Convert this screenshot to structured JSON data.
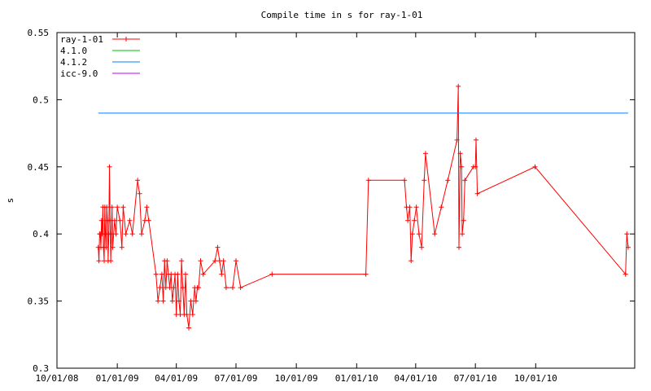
{
  "chart_data": {
    "type": "line",
    "title": "Compile time in s for ray-1-01",
    "xlabel": "",
    "ylabel": "s",
    "x_ticks": [
      "10/01/08",
      "01/01/09",
      "04/01/09",
      "07/01/09",
      "10/01/09",
      "01/01/10",
      "04/01/10",
      "07/01/10",
      "10/01/10"
    ],
    "xlim": [
      "2008-10-01",
      "2011-03-01"
    ],
    "ylim": [
      0.3,
      0.55
    ],
    "y_ticks": [
      "0.3",
      "0.35",
      "0.4",
      "0.45",
      "0.5",
      "0.55"
    ],
    "grid": false,
    "legend_position": "top-left",
    "series": [
      {
        "name": "ray-1-01",
        "color": "#ff0000",
        "marker": "plus",
        "points": [
          [
            "2008-12-03",
            0.39
          ],
          [
            "2008-12-04",
            0.38
          ],
          [
            "2008-12-05",
            0.4
          ],
          [
            "2008-12-06",
            0.4
          ],
          [
            "2008-12-07",
            0.39
          ],
          [
            "2008-12-08",
            0.41
          ],
          [
            "2008-12-09",
            0.4
          ],
          [
            "2008-12-10",
            0.42
          ],
          [
            "2008-12-11",
            0.39
          ],
          [
            "2008-12-12",
            0.38
          ],
          [
            "2008-12-13",
            0.42
          ],
          [
            "2008-12-14",
            0.4
          ],
          [
            "2008-12-15",
            0.39
          ],
          [
            "2008-12-16",
            0.42
          ],
          [
            "2008-12-17",
            0.41
          ],
          [
            "2008-12-18",
            0.38
          ],
          [
            "2008-12-19",
            0.4
          ],
          [
            "2008-12-20",
            0.45
          ],
          [
            "2008-12-21",
            0.41
          ],
          [
            "2008-12-22",
            0.38
          ],
          [
            "2008-12-23",
            0.4
          ],
          [
            "2008-12-24",
            0.42
          ],
          [
            "2008-12-25",
            0.39
          ],
          [
            "2008-12-28",
            0.41
          ],
          [
            "2008-12-30",
            0.4
          ],
          [
            "2009-01-01",
            0.42
          ],
          [
            "2009-01-05",
            0.41
          ],
          [
            "2009-01-08",
            0.39
          ],
          [
            "2009-01-10",
            0.42
          ],
          [
            "2009-01-14",
            0.4
          ],
          [
            "2009-01-20",
            0.41
          ],
          [
            "2009-01-24",
            0.4
          ],
          [
            "2009-02-01",
            0.44
          ],
          [
            "2009-02-04",
            0.43
          ],
          [
            "2009-02-07",
            0.4
          ],
          [
            "2009-02-12",
            0.41
          ],
          [
            "2009-02-15",
            0.42
          ],
          [
            "2009-02-18",
            0.41
          ],
          [
            "2009-03-01",
            0.37
          ],
          [
            "2009-03-04",
            0.35
          ],
          [
            "2009-03-07",
            0.36
          ],
          [
            "2009-03-10",
            0.37
          ],
          [
            "2009-03-12",
            0.35
          ],
          [
            "2009-03-14",
            0.38
          ],
          [
            "2009-03-16",
            0.36
          ],
          [
            "2009-03-18",
            0.38
          ],
          [
            "2009-03-20",
            0.37
          ],
          [
            "2009-03-22",
            0.36
          ],
          [
            "2009-03-24",
            0.37
          ],
          [
            "2009-03-26",
            0.35
          ],
          [
            "2009-03-28",
            0.36
          ],
          [
            "2009-03-30",
            0.37
          ],
          [
            "2009-04-01",
            0.34
          ],
          [
            "2009-04-03",
            0.37
          ],
          [
            "2009-04-05",
            0.35
          ],
          [
            "2009-04-07",
            0.34
          ],
          [
            "2009-04-09",
            0.38
          ],
          [
            "2009-04-11",
            0.36
          ],
          [
            "2009-04-13",
            0.34
          ],
          [
            "2009-04-15",
            0.37
          ],
          [
            "2009-04-17",
            0.34
          ],
          [
            "2009-04-20",
            0.33
          ],
          [
            "2009-04-23",
            0.35
          ],
          [
            "2009-04-26",
            0.34
          ],
          [
            "2009-04-29",
            0.36
          ],
          [
            "2009-05-01",
            0.35
          ],
          [
            "2009-05-03",
            0.36
          ],
          [
            "2009-05-05",
            0.36
          ],
          [
            "2009-05-08",
            0.38
          ],
          [
            "2009-05-12",
            0.37
          ],
          [
            "2009-05-30",
            0.38
          ],
          [
            "2009-06-03",
            0.39
          ],
          [
            "2009-06-06",
            0.38
          ],
          [
            "2009-06-09",
            0.37
          ],
          [
            "2009-06-12",
            0.38
          ],
          [
            "2009-06-16",
            0.36
          ],
          [
            "2009-06-26",
            0.36
          ],
          [
            "2009-07-01",
            0.38
          ],
          [
            "2009-07-08",
            0.36
          ],
          [
            "2009-08-25",
            0.37
          ],
          [
            "2010-01-15",
            0.37
          ],
          [
            "2010-01-19",
            0.44
          ],
          [
            "2010-03-15",
            0.44
          ],
          [
            "2010-03-18",
            0.42
          ],
          [
            "2010-03-20",
            0.41
          ],
          [
            "2010-03-23",
            0.42
          ],
          [
            "2010-03-25",
            0.38
          ],
          [
            "2010-03-27",
            0.4
          ],
          [
            "2010-03-30",
            0.41
          ],
          [
            "2010-04-02",
            0.42
          ],
          [
            "2010-04-06",
            0.4
          ],
          [
            "2010-04-10",
            0.39
          ],
          [
            "2010-04-14",
            0.44
          ],
          [
            "2010-04-16",
            0.46
          ],
          [
            "2010-04-30",
            0.4
          ],
          [
            "2010-05-10",
            0.42
          ],
          [
            "2010-05-20",
            0.44
          ],
          [
            "2010-06-03",
            0.47
          ],
          [
            "2010-06-05",
            0.51
          ],
          [
            "2010-06-06",
            0.39
          ],
          [
            "2010-06-08",
            0.46
          ],
          [
            "2010-06-10",
            0.45
          ],
          [
            "2010-06-11",
            0.4
          ],
          [
            "2010-06-13",
            0.41
          ],
          [
            "2010-06-15",
            0.44
          ],
          [
            "2010-06-28",
            0.45
          ],
          [
            "2010-07-01",
            0.45
          ],
          [
            "2010-07-02",
            0.47
          ],
          [
            "2010-07-04",
            0.43
          ],
          [
            "2010-09-30",
            0.45
          ],
          [
            "2011-02-15",
            0.37
          ],
          [
            "2011-02-17",
            0.4
          ],
          [
            "2011-02-19",
            0.39
          ]
        ]
      },
      {
        "name": "4.1.0",
        "color": "#00c000",
        "points": []
      },
      {
        "name": "4.1.2",
        "color": "#0080ff",
        "points": [
          [
            "2008-12-03",
            0.49
          ],
          [
            "2011-02-19",
            0.49
          ]
        ]
      },
      {
        "name": "icc-9.0",
        "color": "#c000ff",
        "points": []
      }
    ]
  }
}
